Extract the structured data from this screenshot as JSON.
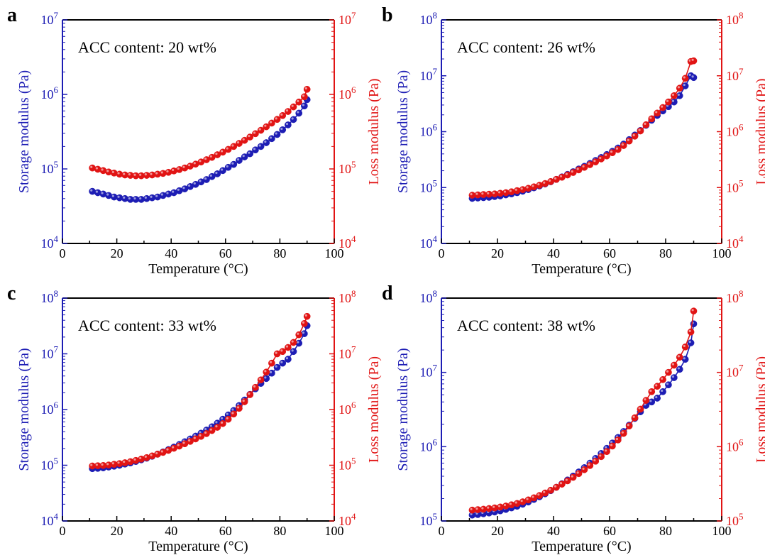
{
  "figure": {
    "colors": {
      "storage": "#1d1db4",
      "loss": "#e11414",
      "axis": "#000000"
    }
  },
  "chart_data": [
    {
      "panel_label": "a",
      "type": "scatter",
      "annotation": "ACC content: 20 wt%",
      "xlabel": "Temperature (°C)",
      "ylabel_left": "Storage modulus (Pa)",
      "ylabel_right": "Loss modulus (Pa)",
      "xlim": [
        0,
        100
      ],
      "ylim_left": [
        10000,
        10000000
      ],
      "ylim_right": [
        10000,
        10000000
      ],
      "yscale": "log",
      "x_ticks": [
        "0",
        "20",
        "40",
        "60",
        "80",
        "100"
      ],
      "y_ticks_left": [
        {
          "base": "10",
          "exp": "4"
        },
        {
          "base": "10",
          "exp": "5"
        },
        {
          "base": "10",
          "exp": "6"
        },
        {
          "base": "10",
          "exp": "7"
        }
      ],
      "y_ticks_right": [
        {
          "base": "10",
          "exp": "4"
        },
        {
          "base": "10",
          "exp": "5"
        },
        {
          "base": "10",
          "exp": "6"
        },
        {
          "base": "10",
          "exp": "7"
        }
      ],
      "x": [
        11,
        13,
        15,
        17,
        19,
        21,
        23,
        25,
        27,
        29,
        31,
        33,
        35,
        37,
        39,
        41,
        43,
        45,
        47,
        49,
        51,
        53,
        55,
        57,
        59,
        61,
        63,
        65,
        67,
        69,
        71,
        73,
        75,
        77,
        79,
        81,
        83,
        85,
        87,
        89,
        90
      ],
      "series": [
        {
          "name": "Storage modulus",
          "axis": "left",
          "color": "#1d1db4",
          "values": [
            50000,
            48000,
            46000,
            44000,
            42000,
            41000,
            40000,
            39000,
            39000,
            39000,
            40000,
            41000,
            42000,
            44000,
            46000,
            48000,
            51000,
            54000,
            58000,
            62000,
            67000,
            72000,
            79000,
            86000,
            95000,
            105000,
            115000,
            130000,
            145000,
            160000,
            180000,
            200000,
            225000,
            255000,
            290000,
            335000,
            390000,
            460000,
            560000,
            700000,
            850000
          ]
        },
        {
          "name": "Loss modulus",
          "axis": "right",
          "color": "#e11414",
          "values": [
            103000,
            99000,
            95000,
            91000,
            88000,
            85000,
            83000,
            82000,
            81000,
            81000,
            82000,
            83000,
            85000,
            87000,
            90000,
            94000,
            98000,
            103000,
            109000,
            116000,
            124000,
            133000,
            143000,
            155000,
            168000,
            183000,
            200000,
            220000,
            242000,
            268000,
            297000,
            330000,
            368000,
            412000,
            462000,
            520000,
            590000,
            680000,
            790000,
            930000,
            1170000
          ]
        }
      ]
    },
    {
      "panel_label": "b",
      "type": "line",
      "annotation": "ACC content: 26 wt%",
      "xlabel": "Temperature (°C)",
      "ylabel_left": "Storage modulus (Pa)",
      "ylabel_right": "Loss modulus (Pa)",
      "xlim": [
        0,
        100
      ],
      "ylim_left": [
        10000,
        100000000
      ],
      "ylim_right": [
        10000,
        100000000
      ],
      "yscale": "log",
      "x_ticks": [
        "0",
        "20",
        "40",
        "60",
        "80",
        "100"
      ],
      "y_ticks_left": [
        {
          "base": "10",
          "exp": "4"
        },
        {
          "base": "10",
          "exp": "5"
        },
        {
          "base": "10",
          "exp": "6"
        },
        {
          "base": "10",
          "exp": "7"
        },
        {
          "base": "10",
          "exp": "8"
        }
      ],
      "y_ticks_right": [
        {
          "base": "10",
          "exp": "4"
        },
        {
          "base": "10",
          "exp": "5"
        },
        {
          "base": "10",
          "exp": "6"
        },
        {
          "base": "10",
          "exp": "7"
        },
        {
          "base": "10",
          "exp": "8"
        }
      ],
      "x": [
        11,
        13,
        15,
        17,
        19,
        21,
        23,
        25,
        27,
        29,
        31,
        33,
        35,
        37,
        39,
        41,
        43,
        45,
        47,
        49,
        51,
        53,
        55,
        57,
        59,
        61,
        63,
        65,
        67,
        69,
        71,
        73,
        75,
        77,
        79,
        81,
        83,
        85,
        87,
        89,
        90
      ],
      "series": [
        {
          "name": "Storage modulus",
          "axis": "left",
          "color": "#1d1db4",
          "values": [
            64000,
            65000,
            66000,
            67000,
            69000,
            71000,
            74000,
            77000,
            81000,
            86000,
            92000,
            99000,
            107000,
            116000,
            127000,
            140000,
            155000,
            172000,
            192000,
            215000,
            240000,
            270000,
            305000,
            345000,
            390000,
            445000,
            510000,
            600000,
            720000,
            870000,
            1050000,
            1300000,
            1600000,
            1950000,
            2350000,
            2800000,
            3400000,
            4400000,
            6600000,
            10000000,
            9300000
          ]
        },
        {
          "name": "Loss modulus",
          "axis": "right",
          "color": "#e11414",
          "values": [
            73000,
            74000,
            75000,
            76000,
            77000,
            79000,
            81000,
            84000,
            88000,
            92000,
            97000,
            103000,
            110000,
            118000,
            128000,
            140000,
            153000,
            168000,
            186000,
            207000,
            230000,
            257000,
            288000,
            325000,
            368000,
            420000,
            480000,
            565000,
            680000,
            830000,
            1030000,
            1330000,
            1700000,
            2150000,
            2700000,
            3400000,
            4400000,
            6000000,
            9000000,
            18000000,
            18500000
          ]
        }
      ]
    },
    {
      "panel_label": "c",
      "type": "line",
      "annotation": "ACC content: 33 wt%",
      "xlabel": "Temperature (°C)",
      "ylabel_left": "Storage modulus (Pa)",
      "ylabel_right": "Loss modulus (Pa)",
      "xlim": [
        0,
        100
      ],
      "ylim_left": [
        10000,
        100000000
      ],
      "ylim_right": [
        10000,
        100000000
      ],
      "yscale": "log",
      "x_ticks": [
        "0",
        "20",
        "40",
        "60",
        "80",
        "100"
      ],
      "y_ticks_left": [
        {
          "base": "10",
          "exp": "4"
        },
        {
          "base": "10",
          "exp": "5"
        },
        {
          "base": "10",
          "exp": "6"
        },
        {
          "base": "10",
          "exp": "7"
        },
        {
          "base": "10",
          "exp": "8"
        }
      ],
      "y_ticks_right": [
        {
          "base": "10",
          "exp": "4"
        },
        {
          "base": "10",
          "exp": "5"
        },
        {
          "base": "10",
          "exp": "6"
        },
        {
          "base": "10",
          "exp": "7"
        },
        {
          "base": "10",
          "exp": "8"
        }
      ],
      "x": [
        11,
        13,
        15,
        17,
        19,
        21,
        23,
        25,
        27,
        29,
        31,
        33,
        35,
        37,
        39,
        41,
        43,
        45,
        47,
        49,
        51,
        53,
        55,
        57,
        59,
        61,
        63,
        65,
        67,
        69,
        71,
        73,
        75,
        77,
        79,
        81,
        83,
        85,
        87,
        89,
        90
      ],
      "series": [
        {
          "name": "Storage modulus",
          "axis": "left",
          "color": "#1d1db4",
          "values": [
            87000,
            88000,
            90000,
            93000,
            96000,
            100000,
            105000,
            110000,
            117000,
            125000,
            134000,
            145000,
            158000,
            173000,
            191000,
            212000,
            236000,
            264000,
            296000,
            333000,
            376000,
            428000,
            490000,
            570000,
            670000,
            800000,
            960000,
            1180000,
            1480000,
            1870000,
            2350000,
            2950000,
            3600000,
            4500000,
            5700000,
            6800000,
            8000000,
            11000000,
            15500000,
            23000000,
            32000000
          ]
        },
        {
          "name": "Loss modulus",
          "axis": "right",
          "color": "#e11414",
          "values": [
            97000,
            98000,
            99000,
            101000,
            104000,
            107000,
            111000,
            116000,
            122000,
            129000,
            137000,
            147000,
            158000,
            170000,
            185000,
            202000,
            221000,
            243000,
            268000,
            297000,
            330000,
            370000,
            420000,
            480000,
            560000,
            670000,
            830000,
            1050000,
            1380000,
            1850000,
            2500000,
            3400000,
            4700000,
            6800000,
            10000000,
            11000000,
            13000000,
            16000000,
            22000000,
            35000000,
            47000000
          ]
        }
      ]
    },
    {
      "panel_label": "d",
      "type": "line",
      "annotation": "ACC content: 38 wt%",
      "xlabel": "Temperature (°C)",
      "ylabel_left": "Storage modulus (Pa)",
      "ylabel_right": "Loss modulus (Pa)",
      "xlim": [
        0,
        100
      ],
      "ylim_left": [
        100000,
        100000000
      ],
      "ylim_right": [
        100000,
        100000000
      ],
      "yscale": "log",
      "x_ticks": [
        "0",
        "20",
        "40",
        "60",
        "80",
        "100"
      ],
      "y_ticks_left": [
        {
          "base": "10",
          "exp": "5"
        },
        {
          "base": "10",
          "exp": "6"
        },
        {
          "base": "10",
          "exp": "7"
        },
        {
          "base": "10",
          "exp": "8"
        }
      ],
      "y_ticks_right": [
        {
          "base": "10",
          "exp": "5"
        },
        {
          "base": "10",
          "exp": "6"
        },
        {
          "base": "10",
          "exp": "7"
        },
        {
          "base": "10",
          "exp": "8"
        }
      ],
      "x": [
        11,
        13,
        15,
        17,
        19,
        21,
        23,
        25,
        27,
        29,
        31,
        33,
        35,
        37,
        39,
        41,
        43,
        45,
        47,
        49,
        51,
        53,
        55,
        57,
        59,
        61,
        63,
        65,
        67,
        69,
        71,
        73,
        75,
        77,
        79,
        81,
        83,
        85,
        87,
        89,
        90
      ],
      "series": [
        {
          "name": "Storage modulus",
          "axis": "left",
          "color": "#1d1db4",
          "values": [
            120000,
            122000,
            125000,
            128000,
            132000,
            137000,
            143000,
            150000,
            158000,
            168000,
            180000,
            195000,
            212000,
            232000,
            256000,
            284000,
            317000,
            356000,
            402000,
            457000,
            522000,
            600000,
            695000,
            810000,
            950000,
            1120000,
            1330000,
            1600000,
            1950000,
            2400000,
            2950000,
            3600000,
            4000000,
            4500000,
            5500000,
            6800000,
            8500000,
            11000000,
            15000000,
            25000000,
            45000000
          ]
        },
        {
          "name": "Loss modulus",
          "axis": "right",
          "color": "#e11414",
          "values": [
            140000,
            142000,
            144000,
            147000,
            150000,
            154000,
            159000,
            165000,
            172000,
            181000,
            192000,
            205000,
            220000,
            238000,
            259000,
            284000,
            313000,
            347000,
            387000,
            434000,
            490000,
            557000,
            637000,
            735000,
            860000,
            1020000,
            1230000,
            1510000,
            1900000,
            2450000,
            3200000,
            4200000,
            5500000,
            6500000,
            8000000,
            10000000,
            12500000,
            16000000,
            22000000,
            35000000,
            67000000
          ]
        }
      ]
    }
  ]
}
